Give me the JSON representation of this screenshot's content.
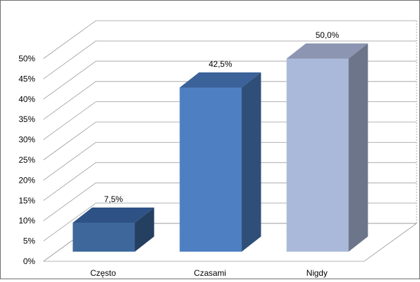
{
  "chart_data": {
    "type": "bar",
    "title": "",
    "xlabel": "",
    "ylabel": "",
    "categories": [
      "Często",
      "Czasami",
      "Nigdy"
    ],
    "values": [
      7.5,
      42.5,
      50.0
    ],
    "data_labels": [
      "7,5%",
      "42,5%",
      "50,0%"
    ],
    "ylim": [
      0,
      50
    ],
    "y_ticks": [
      0,
      5,
      10,
      15,
      20,
      25,
      30,
      35,
      40,
      45,
      50
    ],
    "y_tick_labels": [
      "0%",
      "5%",
      "10%",
      "15%",
      "20%",
      "25%",
      "30%",
      "35%",
      "40%",
      "45%",
      "50%"
    ],
    "grid": true,
    "style": "3d-column",
    "legend": "none",
    "colors": {
      "front": [
        "#3e689c",
        "#4f7fc3",
        "#aab9d9"
      ],
      "top": [
        "#2f5286",
        "#3b6299",
        "#8c96b2"
      ],
      "side": [
        "#253f61",
        "#2f4f78",
        "#6c7589"
      ],
      "grid": "#9a9a9a",
      "text": "#000000"
    }
  }
}
